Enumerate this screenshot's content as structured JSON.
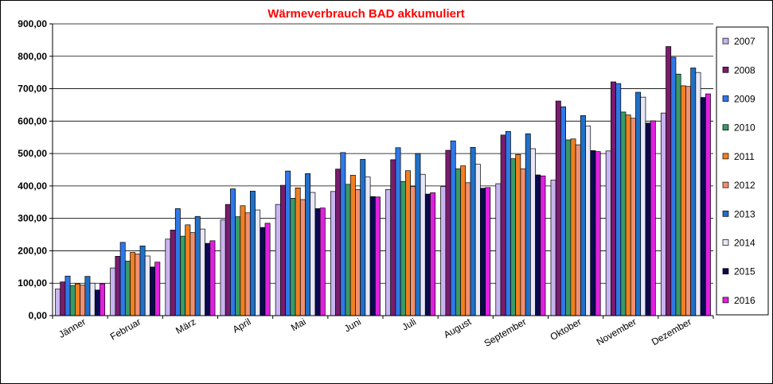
{
  "chart_data": {
    "type": "bar",
    "title": "Wärmeverbrauch BAD akkumuliert",
    "xlabel": "",
    "ylabel": "",
    "ylim": [
      0,
      900
    ],
    "yticks": [
      "0,00",
      "100,00",
      "200,00",
      "300,00",
      "400,00",
      "500,00",
      "600,00",
      "700,00",
      "800,00",
      "900,00"
    ],
    "grid": true,
    "legend_position": "right",
    "categories": [
      "Jänner",
      "Februar",
      "März",
      "April",
      "Mai",
      "Juni",
      "Juli",
      "August",
      "September",
      "Oktober",
      "November",
      "Dezember"
    ],
    "series": [
      {
        "name": "2007",
        "color": "#c8b4f0",
        "values": [
          82,
          147,
          236,
          295,
          343,
          383,
          389,
          398,
          407,
          418,
          508,
          625
        ]
      },
      {
        "name": "2008",
        "color": "#7a1c6e",
        "values": [
          104,
          183,
          264,
          343,
          402,
          452,
          481,
          510,
          557,
          662,
          721,
          830
        ]
      },
      {
        "name": "2009",
        "color": "#2f78e8",
        "values": [
          122,
          226,
          330,
          391,
          446,
          503,
          518,
          539,
          568,
          644,
          716,
          797
        ]
      },
      {
        "name": "2010",
        "color": "#3a9a68",
        "values": [
          93,
          168,
          245,
          305,
          362,
          405,
          414,
          453,
          484,
          542,
          628,
          745
        ]
      },
      {
        "name": "2011",
        "color": "#f08020",
        "values": [
          98,
          195,
          280,
          339,
          394,
          433,
          447,
          462,
          497,
          545,
          619,
          709
        ]
      },
      {
        "name": "2012",
        "color": "#f09070",
        "values": [
          94,
          190,
          256,
          317,
          358,
          389,
          398,
          410,
          453,
          527,
          609,
          707
        ]
      },
      {
        "name": "2013",
        "color": "#2070c8",
        "values": [
          121,
          215,
          306,
          384,
          438,
          482,
          500,
          519,
          561,
          617,
          689,
          764
        ]
      },
      {
        "name": "2014",
        "color": "#e8e8f8",
        "values": [
          100,
          184,
          267,
          326,
          380,
          428,
          436,
          467,
          515,
          585,
          674,
          750
        ]
      },
      {
        "name": "2015",
        "color": "#0a0a50",
        "values": [
          79,
          150,
          223,
          272,
          330,
          367,
          375,
          393,
          434,
          509,
          594,
          673
        ]
      },
      {
        "name": "2016",
        "color": "#e020e0",
        "values": [
          98,
          165,
          231,
          285,
          332,
          366,
          379,
          395,
          431,
          506,
          601,
          684
        ]
      }
    ]
  }
}
